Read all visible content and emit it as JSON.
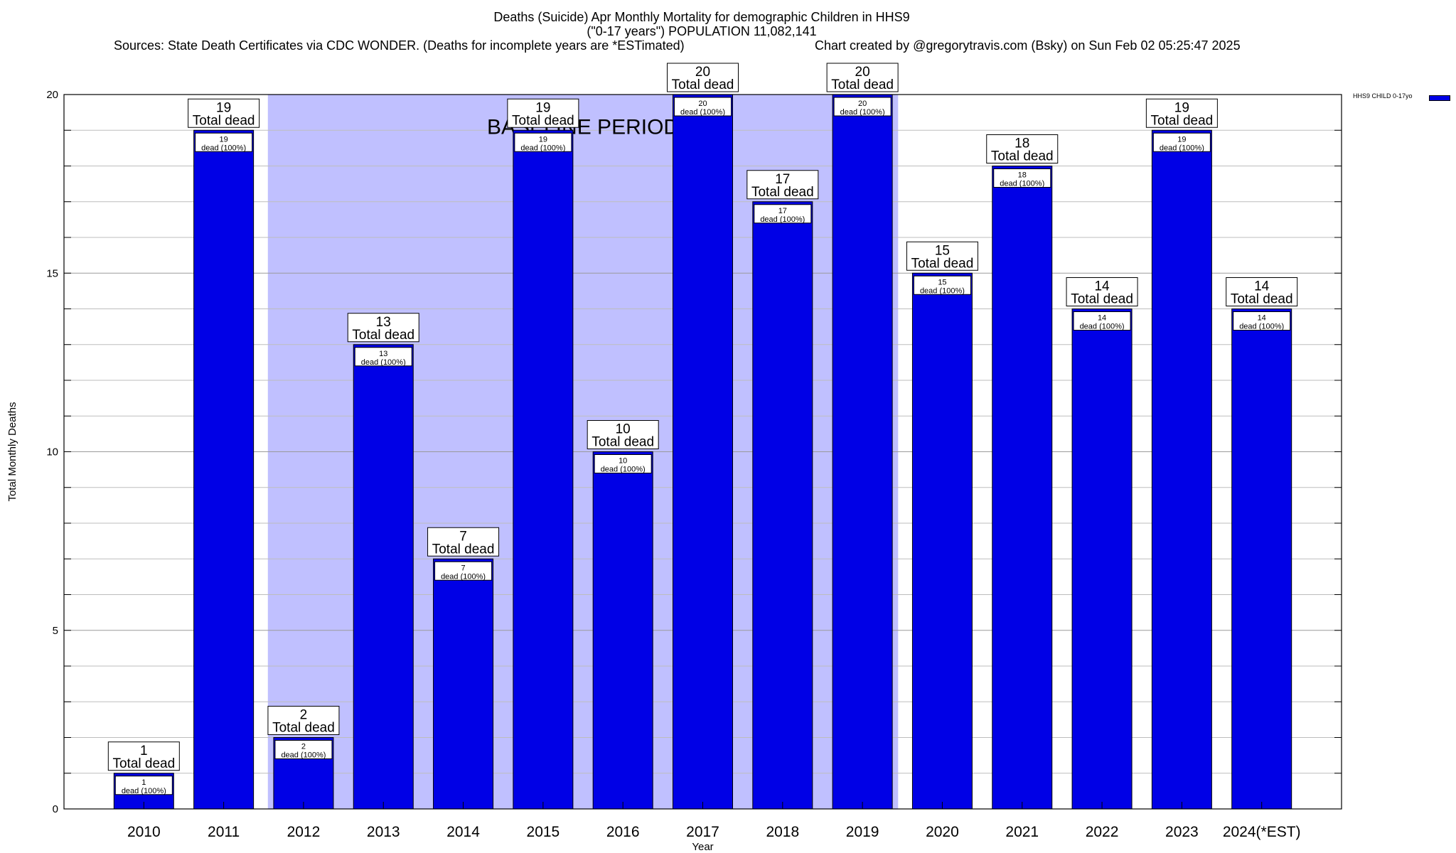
{
  "title": {
    "line1": "Deaths (Suicide) Apr Monthly Mortality for demographic Children in HHS9",
    "line2": "(\"0-17 years\") POPULATION 11,082,141",
    "sources": "Sources: State Death Certificates via CDC WONDER. (Deaths for incomplete years are *ESTimated)",
    "credit": "Chart created by @gregorytravis.com (Bsky) on Sun Feb 02 05:25:47 2025"
  },
  "legend": {
    "label": "HHS9 CHILD 0-17yo"
  },
  "colors": {
    "bar": "#0000e6",
    "baseline": "#c0c0ff",
    "grid": "#bdbdbd"
  },
  "chart_data": {
    "type": "bar",
    "xlabel": "Year",
    "ylabel": "Total Monthly Deaths",
    "ylim": [
      0,
      20
    ],
    "yticks": [
      0,
      5,
      10,
      15,
      20
    ],
    "grid": true,
    "legend_position": "top-right, outside plot",
    "baseline_label": "BASELINE PERIOD",
    "baseline_range": [
      "2012",
      "2019"
    ],
    "categories": [
      "2010",
      "2011",
      "2012",
      "2013",
      "2014",
      "2015",
      "2016",
      "2017",
      "2018",
      "2019",
      "2020",
      "2021",
      "2022",
      "2023",
      "2024(*EST)"
    ],
    "series": [
      {
        "name": "HHS9 CHILD 0-17yo",
        "values": [
          1,
          19,
          2,
          13,
          7,
          19,
          10,
          20,
          17,
          20,
          15,
          18,
          14,
          19,
          14
        ]
      }
    ],
    "top_label_suffix": "Total dead",
    "inner_labels": [
      "dead (100%)",
      "dead (100%)",
      "dead (100%)",
      "dead (100%)",
      "dead (100%)",
      "dead (100%)",
      "dead (100%)",
      "dead (100%)",
      "dead (100%)",
      "dead (100%)",
      "dead (100%)",
      "dead (100%)",
      "dead (100%)",
      "dead (100%)",
      "dead (100%)"
    ]
  }
}
